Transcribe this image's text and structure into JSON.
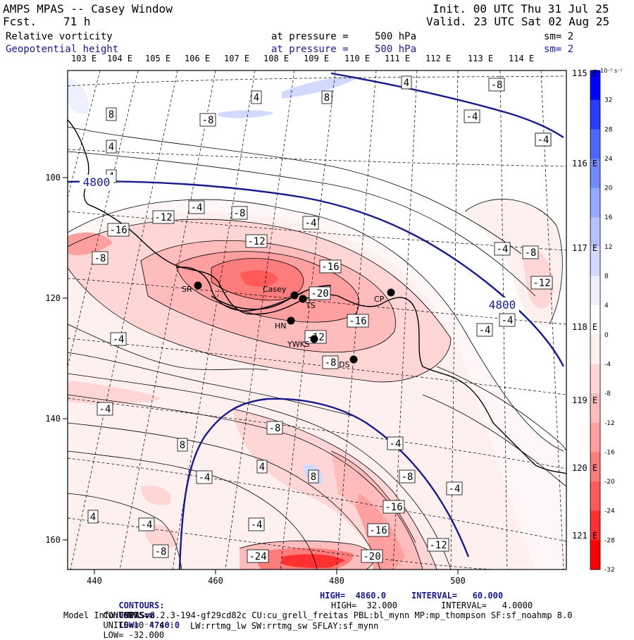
{
  "header": {
    "model": "AMPS MPAS -- Casey Window",
    "fcst_label": "Fcst.",
    "fcst_value": "71 h",
    "init": "Init. 00 UTC Thu 31 Jul 25",
    "valid": "Valid. 23 UTC Sat 02 Aug 25"
  },
  "fields": [
    {
      "name": "Relative vorticity",
      "pressure_text": "at pressure =",
      "pressure": "500 hPa",
      "sm": "sm= 2"
    },
    {
      "name": "Geopotential height",
      "pressure_text": "at pressure =",
      "pressure": "500 hPa",
      "sm": "sm= 2"
    }
  ],
  "axes": {
    "lon_top": [
      "103 E",
      "104 E",
      "105 E",
      "106 E",
      "107 E",
      "108 E",
      "109 E",
      "110 E",
      "111 E",
      "112 E",
      "113 E",
      "114 E"
    ],
    "lon_right": [
      "115 E",
      "116 E",
      "117 E",
      "118 E",
      "119 E",
      "120 E",
      "121 E"
    ],
    "x_ticks": [
      "440",
      "460",
      "480",
      "500"
    ],
    "y_ticks": [
      "100",
      "120",
      "140",
      "160"
    ]
  },
  "colorbar": {
    "unit": "10⁻⁵ s⁻¹",
    "levels": [
      "32",
      "28",
      "24",
      "20",
      "16",
      "12",
      "8",
      "4",
      "0",
      "-4",
      "-8",
      "-12",
      "-16",
      "-20",
      "-24",
      "-28",
      "-32"
    ],
    "colors": [
      "#0000ff",
      "#2a3cff",
      "#4f66ff",
      "#7288ff",
      "#96a7ff",
      "#b4c0ff",
      "#d2d9ff",
      "#eef0ff",
      "#ffffff",
      "#fff0f0",
      "#ffd6d6",
      "#ffbcbc",
      "#ff9f9f",
      "#ff7c7c",
      "#ff5a5a",
      "#ff3030",
      "#ff0000"
    ]
  },
  "stations": [
    {
      "label": "SR"
    },
    {
      "label": "Casey"
    },
    {
      "label": "TS"
    },
    {
      "label": "HN"
    },
    {
      "label": "YWKS"
    },
    {
      "label": "CP"
    },
    {
      "label": "DS"
    }
  ],
  "contour_labels": {
    "height": [
      "4800",
      "4800"
    ],
    "vorticity": [
      "-8",
      "4",
      "8",
      "-8",
      "4",
      "-4",
      "-4",
      "8",
      "4",
      "4",
      "-4",
      "-8",
      "-12",
      "-16",
      "-8",
      "-12",
      "-4",
      "-16",
      "-20",
      "-16",
      "-12",
      "-8",
      "-4",
      "-4",
      "-8",
      "-12",
      "-4",
      "-4",
      "-8",
      "-4",
      "8",
      "4",
      "-4",
      "8",
      "-8",
      "-4",
      "-4",
      "-8",
      "-16",
      "-16",
      "-12",
      "-24",
      "-20",
      "-4",
      "4",
      "-4",
      "-4"
    ]
  },
  "footer": {
    "line1_label": "CONTOURS:",
    "line1_units": "UNITS=m",
    "line1_low": "LOW=  4740.0",
    "line1_high": "HIGH=  4860.0",
    "line1_interval": "INTERVAL=   60.000",
    "line2_label": "CONTOURS:",
    "line2_units": "UNITS=10⁻⁵ s⁻¹",
    "line2_low": "LOW= -32.000",
    "line2_high": "HIGH=  32.000",
    "line2_interval": "INTERVAL=   4.0000",
    "model_info": "Model Info: MPASv8.2.3-194-gf29cd82c CU:cu_grell_freitas PBL:bl_mynn MP:mp_thompson SF:sf_noahmp 8.0",
    "model_info2": "LW:rrtmg_lw SW:rrtmg_sw SFLAY:sf_mynn"
  }
}
